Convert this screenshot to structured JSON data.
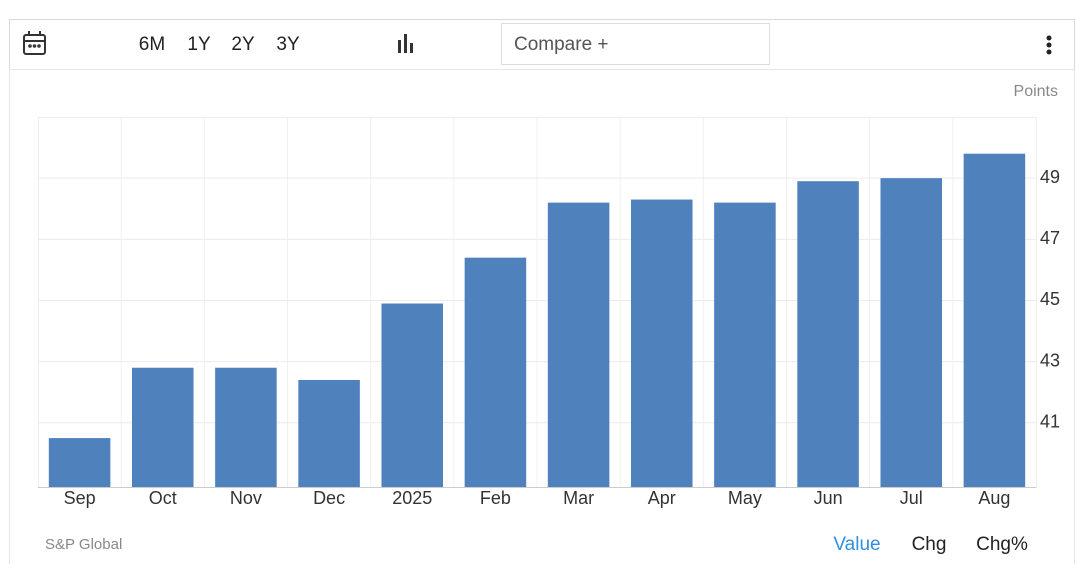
{
  "toolbar": {
    "ranges": [
      "6M",
      "1Y",
      "2Y",
      "3Y"
    ],
    "compare": "Compare +"
  },
  "chart_data": {
    "type": "bar",
    "y_label": "Points",
    "categories": [
      "Sep",
      "Oct",
      "Nov",
      "Dec",
      "2025",
      "Feb",
      "Mar",
      "Apr",
      "May",
      "Jun",
      "Jul",
      "Aug"
    ],
    "values": [
      40.5,
      42.8,
      42.8,
      42.4,
      44.9,
      46.4,
      48.2,
      48.3,
      48.2,
      48.9,
      49.0,
      49.8
    ],
    "color": "#4f81bd",
    "ylim": [
      38.9,
      51
    ],
    "yticks": [
      41,
      43,
      45,
      47,
      49
    ],
    "grid": true
  },
  "footer": {
    "source": "S&P Global",
    "views": [
      "Value",
      "Chg",
      "Chg%"
    ]
  }
}
